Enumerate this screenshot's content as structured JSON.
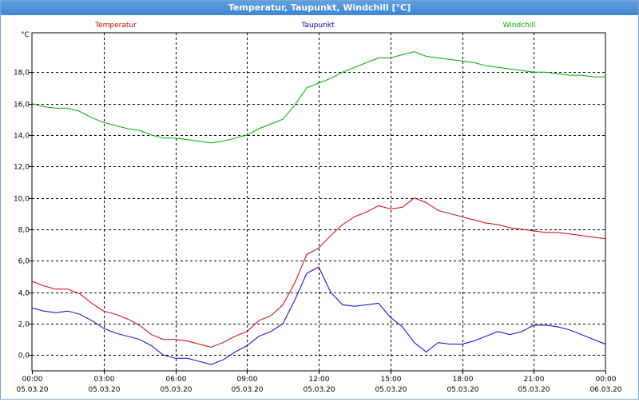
{
  "window": {
    "title": "Temperatur, Taupunkt, Windchill [°C]"
  },
  "colors": {
    "temperatur": "#cc0000",
    "taupunkt": "#0000cc",
    "windchill": "#00aa00"
  },
  "chart_data": {
    "type": "line",
    "title": "Temperatur, Taupunkt, Windchill [°C]",
    "ylabel": "°C",
    "ylim": [
      -1.0,
      20.5
    ],
    "yticks": [
      "0,0",
      "2,0",
      "4,0",
      "6,0",
      "8,0",
      "10,0",
      "12,0",
      "14,0",
      "16,0",
      "18,0"
    ],
    "ytick_values": [
      0,
      2,
      4,
      6,
      8,
      10,
      12,
      14,
      16,
      18
    ],
    "xlim": [
      "05.03.20 00:00",
      "06.03.20 00:00"
    ],
    "xticks": [
      {
        "time": "00:00",
        "date": "05.03.20"
      },
      {
        "time": "03:00",
        "date": "05.03.20"
      },
      {
        "time": "06:00",
        "date": "05.03.20"
      },
      {
        "time": "09:00",
        "date": "05.03.20"
      },
      {
        "time": "12:00",
        "date": "05.03.20"
      },
      {
        "time": "15:00",
        "date": "05.03.20"
      },
      {
        "time": "18:00",
        "date": "05.03.20"
      },
      {
        "time": "21:00",
        "date": "05.03.20"
      },
      {
        "time": "00:00",
        "date": "06.03.20"
      }
    ],
    "grid": true,
    "legend": "top",
    "x": [
      "00:00",
      "00:30",
      "01:00",
      "01:30",
      "02:00",
      "02:30",
      "03:00",
      "03:30",
      "04:00",
      "04:30",
      "05:00",
      "05:30",
      "06:00",
      "06:30",
      "07:00",
      "07:30",
      "08:00",
      "08:30",
      "09:00",
      "09:30",
      "10:00",
      "10:30",
      "11:00",
      "11:30",
      "12:00",
      "12:30",
      "13:00",
      "13:30",
      "14:00",
      "14:30",
      "15:00",
      "15:30",
      "16:00",
      "16:30",
      "17:00",
      "17:30",
      "18:00",
      "18:30",
      "19:00",
      "19:30",
      "20:00",
      "20:30",
      "21:00",
      "21:30",
      "22:00",
      "22:30",
      "23:00",
      "23:30",
      "24:00"
    ],
    "series": [
      {
        "name": "Temperatur",
        "values": [
          4.7,
          4.4,
          4.2,
          4.2,
          3.9,
          3.3,
          2.8,
          2.6,
          2.3,
          1.9,
          1.3,
          1.0,
          1.0,
          0.9,
          0.7,
          0.5,
          0.8,
          1.2,
          1.5,
          2.2,
          2.5,
          3.2,
          4.6,
          6.4,
          6.8,
          7.6,
          8.3,
          8.8,
          9.1,
          9.5,
          9.3,
          9.4,
          10.0,
          9.7,
          9.2,
          9.0,
          8.8,
          8.6,
          8.4,
          8.3,
          8.1,
          8.0,
          7.9,
          7.8,
          7.8,
          7.7,
          7.6,
          7.5,
          7.4
        ]
      },
      {
        "name": "Taupunkt",
        "values": [
          3.0,
          2.8,
          2.7,
          2.8,
          2.6,
          2.2,
          1.7,
          1.4,
          1.2,
          1.0,
          0.6,
          0.0,
          -0.2,
          -0.2,
          -0.4,
          -0.6,
          -0.3,
          0.2,
          0.6,
          1.2,
          1.5,
          2.0,
          3.5,
          5.2,
          5.6,
          4.0,
          3.2,
          3.1,
          3.2,
          3.3,
          2.4,
          1.8,
          0.8,
          0.2,
          0.8,
          0.7,
          0.7,
          0.9,
          1.2,
          1.5,
          1.3,
          1.5,
          1.9,
          1.9,
          1.8,
          1.6,
          1.3,
          1.0,
          0.7
        ]
      },
      {
        "name": "Windchill",
        "values": [
          16.0,
          15.8,
          15.7,
          15.7,
          15.5,
          15.1,
          14.8,
          14.6,
          14.4,
          14.3,
          14.0,
          13.8,
          13.8,
          13.7,
          13.6,
          13.5,
          13.6,
          13.8,
          14.0,
          14.4,
          14.7,
          15.0,
          15.9,
          17.0,
          17.3,
          17.6,
          18.0,
          18.3,
          18.6,
          18.9,
          18.9,
          19.1,
          19.3,
          19.0,
          18.9,
          18.8,
          18.7,
          18.6,
          18.4,
          18.3,
          18.2,
          18.1,
          18.0,
          18.0,
          17.9,
          17.8,
          17.8,
          17.7,
          17.7
        ]
      }
    ]
  }
}
